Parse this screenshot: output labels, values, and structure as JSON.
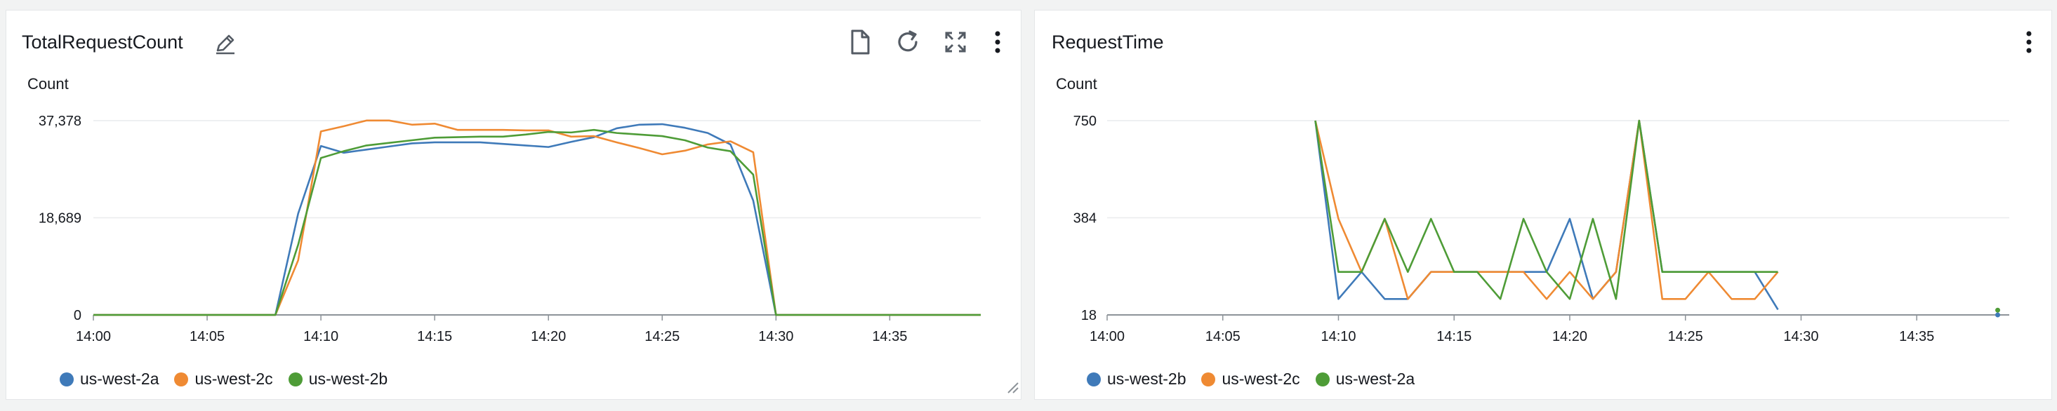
{
  "widgets": [
    {
      "title": "TotalRequestCount",
      "icons": [
        "edit-pencil-icon",
        "document-icon",
        "refresh-icon",
        "expand-icon",
        "more-vertical-icon"
      ]
    },
    {
      "title": "RequestTime",
      "icons": [
        "more-vertical-icon"
      ]
    }
  ],
  "colors": {
    "blue": "#3f7ab9",
    "orange": "#ef8a33",
    "green": "#4e9c37",
    "grid": "#e9ebed",
    "axis": "#8d9399"
  },
  "chart_data": [
    {
      "type": "line",
      "title": "TotalRequestCount",
      "ylabel": "Count",
      "ylim": [
        0,
        37378
      ],
      "yticks": [
        0,
        18689,
        37378
      ],
      "ytick_labels": [
        "0",
        "18,689",
        "37,378"
      ],
      "x_ticks": [
        "14:00",
        "14:05",
        "14:10",
        "14:15",
        "14:20",
        "14:25",
        "14:30",
        "14:35"
      ],
      "x_range_minutes": [
        0,
        39
      ],
      "legend_position": "bottom-left",
      "grid": true,
      "series": [
        {
          "name": "us-west-2a",
          "color": "#3f7ab9",
          "x": [
            0,
            8,
            9,
            10,
            11,
            12,
            13,
            14,
            15,
            16,
            17,
            18,
            19,
            20,
            21,
            22,
            23,
            24,
            25,
            26,
            27,
            28,
            29,
            30,
            31,
            32,
            33,
            34,
            35,
            36,
            37,
            38,
            39
          ],
          "values": [
            0,
            0,
            19500,
            32500,
            31200,
            31800,
            32400,
            33000,
            33200,
            33200,
            33200,
            32900,
            32600,
            32300,
            33300,
            34200,
            35900,
            36600,
            36700,
            36000,
            35000,
            32800,
            22000,
            0,
            0,
            0,
            0,
            0,
            0,
            0,
            0,
            0,
            0
          ]
        },
        {
          "name": "us-west-2c",
          "color": "#ef8a33",
          "x": [
            0,
            8,
            9,
            10,
            11,
            12,
            13,
            14,
            15,
            16,
            17,
            18,
            19,
            20,
            21,
            22,
            23,
            24,
            25,
            26,
            27,
            28,
            29,
            30,
            31,
            32,
            33,
            34,
            35,
            36,
            37,
            38,
            39
          ],
          "values": [
            0,
            0,
            10500,
            35300,
            36300,
            37400,
            37400,
            36600,
            36800,
            35600,
            35600,
            35600,
            35500,
            35500,
            34300,
            34400,
            33200,
            32100,
            30900,
            31600,
            32800,
            33400,
            31300,
            0,
            0,
            0,
            0,
            0,
            0,
            0,
            0,
            0,
            0
          ]
        },
        {
          "name": "us-west-2b",
          "color": "#4e9c37",
          "x": [
            0,
            8,
            9,
            10,
            11,
            12,
            13,
            14,
            15,
            16,
            17,
            18,
            19,
            20,
            21,
            22,
            23,
            24,
            25,
            26,
            27,
            28,
            29,
            30,
            31,
            32,
            33,
            34,
            35,
            36,
            37,
            38,
            39
          ],
          "values": [
            0,
            0,
            13500,
            30200,
            31500,
            32600,
            33100,
            33600,
            34100,
            34200,
            34300,
            34300,
            34700,
            35200,
            35100,
            35600,
            35000,
            34700,
            34400,
            33600,
            32200,
            31500,
            27000,
            0,
            0,
            0,
            0,
            0,
            0,
            0,
            0,
            0,
            0
          ]
        }
      ]
    },
    {
      "type": "line",
      "title": "RequestTime",
      "ylabel": "Count",
      "ylim": [
        18,
        750
      ],
      "yticks": [
        18,
        384,
        750
      ],
      "ytick_labels": [
        "18",
        "384",
        "750"
      ],
      "x_ticks": [
        "14:00",
        "14:05",
        "14:10",
        "14:15",
        "14:20",
        "14:25",
        "14:30",
        "14:35"
      ],
      "x_range_minutes": [
        0,
        39
      ],
      "legend_position": "bottom-left",
      "grid": true,
      "series": [
        {
          "name": "us-west-2b",
          "color": "#3f7ab9",
          "x": [
            9,
            10,
            11,
            12,
            13,
            14,
            15,
            16,
            17,
            18,
            19,
            20,
            21,
            22,
            23,
            24,
            25,
            26,
            27,
            28,
            29
          ],
          "values": [
            750,
            78,
            180,
            78,
            78,
            180,
            180,
            180,
            180,
            180,
            180,
            380,
            78,
            180,
            750,
            180,
            180,
            180,
            180,
            180,
            38
          ],
          "isolated_points": [
            {
              "x": 38.5,
              "y": 18
            }
          ]
        },
        {
          "name": "us-west-2c",
          "color": "#ef8a33",
          "x": [
            9,
            10,
            11,
            12,
            13,
            14,
            15,
            16,
            17,
            18,
            19,
            20,
            21,
            22,
            23,
            24,
            25,
            26,
            27,
            28,
            29
          ],
          "values": [
            750,
            380,
            180,
            380,
            78,
            180,
            180,
            180,
            180,
            180,
            78,
            180,
            78,
            180,
            750,
            78,
            78,
            180,
            78,
            78,
            180
          ]
        },
        {
          "name": "us-west-2a",
          "color": "#4e9c37",
          "x": [
            9,
            10,
            11,
            12,
            13,
            14,
            15,
            16,
            17,
            18,
            19,
            20,
            21,
            22,
            23,
            24,
            25,
            26,
            27,
            28,
            29
          ],
          "values": [
            750,
            180,
            180,
            380,
            180,
            380,
            180,
            180,
            78,
            380,
            180,
            78,
            380,
            78,
            750,
            180,
            180,
            180,
            180,
            180,
            180
          ],
          "isolated_points": [
            {
              "x": 38.5,
              "y": 36
            }
          ]
        }
      ]
    }
  ]
}
